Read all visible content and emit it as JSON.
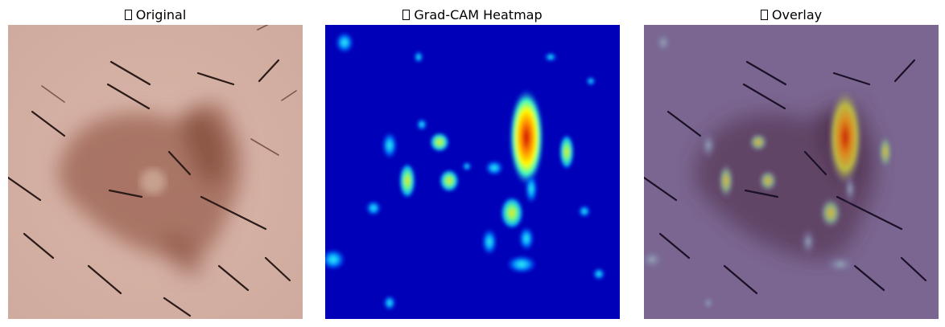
{
  "panels": [
    {
      "title": "Original"
    },
    {
      "title": "Grad-CAM Heatmap"
    },
    {
      "title": "Overlay"
    }
  ],
  "colors": {
    "skin": "#cfa79b",
    "lesion": "#8a5040",
    "heat_low": "#0000b8",
    "heat_high": "#cc0000",
    "overlay_tint": "#6a5896"
  }
}
